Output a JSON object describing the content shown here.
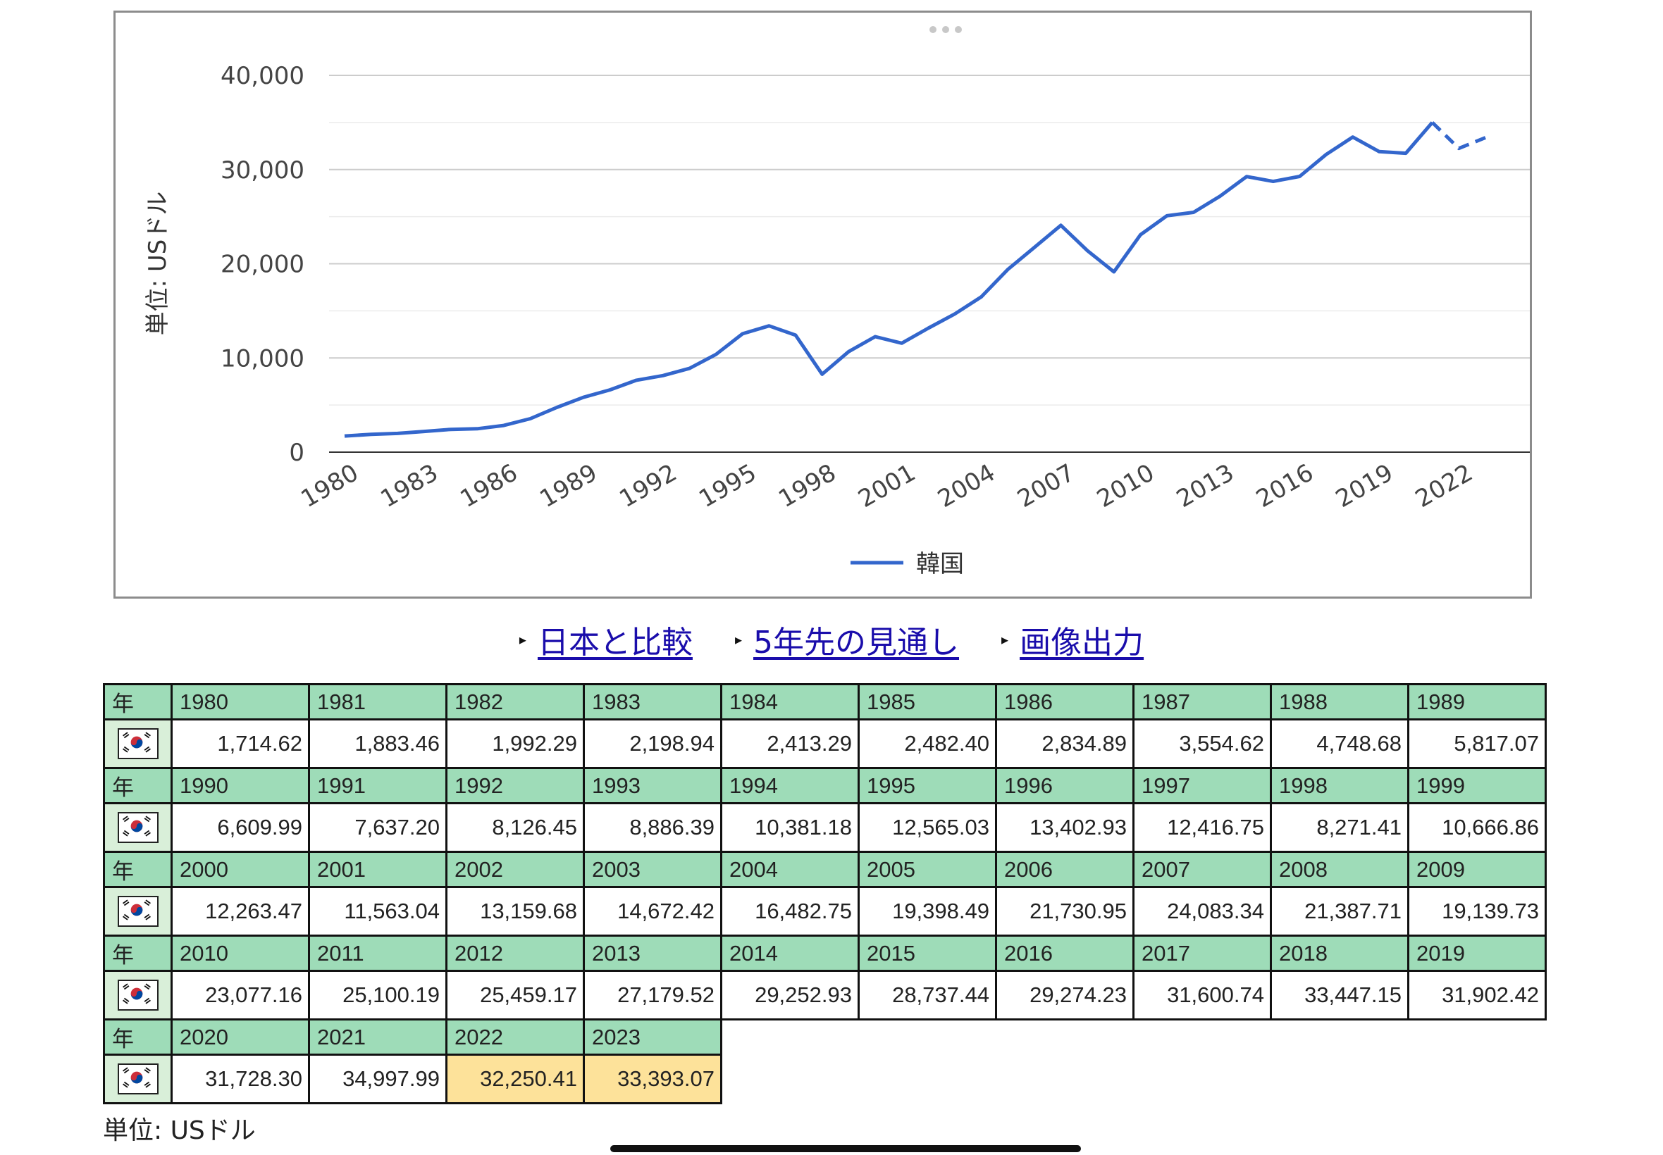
{
  "chart_data": {
    "type": "line",
    "ylabel": "単位: USドル",
    "xlabel": "",
    "ylim": [
      0,
      40000
    ],
    "y_ticks": [
      0,
      10000,
      20000,
      30000,
      40000
    ],
    "y_tick_labels": [
      "0",
      "10,000",
      "20,000",
      "30,000",
      "40,000"
    ],
    "x_tick_labels": [
      "1980",
      "1983",
      "1986",
      "1989",
      "1992",
      "1995",
      "1998",
      "2001",
      "2004",
      "2007",
      "2010",
      "2013",
      "2016",
      "2019",
      "2022"
    ],
    "grid": true,
    "legend": "bottom",
    "x": [
      1980,
      1981,
      1982,
      1983,
      1984,
      1985,
      1986,
      1987,
      1988,
      1989,
      1990,
      1991,
      1992,
      1993,
      1994,
      1995,
      1996,
      1997,
      1998,
      1999,
      2000,
      2001,
      2002,
      2003,
      2004,
      2005,
      2006,
      2007,
      2008,
      2009,
      2010,
      2011,
      2012,
      2013,
      2014,
      2015,
      2016,
      2017,
      2018,
      2019,
      2020,
      2021,
      2022,
      2023
    ],
    "series": [
      {
        "name": "韓国",
        "color": "#3366cc",
        "values": [
          1714.62,
          1883.46,
          1992.29,
          2198.94,
          2413.29,
          2482.4,
          2834.89,
          3554.62,
          4748.68,
          5817.07,
          6609.99,
          7637.2,
          8126.45,
          8886.39,
          10381.18,
          12565.03,
          13402.93,
          12416.75,
          8271.41,
          10666.86,
          12263.47,
          11563.04,
          13159.68,
          14672.42,
          16482.75,
          19398.49,
          21730.95,
          24083.34,
          21387.71,
          19139.73,
          23077.16,
          25100.19,
          25459.17,
          27179.52,
          29252.93,
          28737.44,
          29274.23,
          31600.74,
          33447.15,
          31902.42,
          31728.3,
          34997.99,
          32250.41,
          33393.07
        ],
        "forecast_from": 2022
      }
    ]
  },
  "links": [
    {
      "label": "日本と比較"
    },
    {
      "label": "5年先の見通し"
    },
    {
      "label": "画像出力"
    }
  ],
  "table": {
    "year_header": "年",
    "flag_icon": "south-korea-flag-icon",
    "rows": [
      {
        "years": [
          "1980",
          "1981",
          "1982",
          "1983",
          "1984",
          "1985",
          "1986",
          "1987",
          "1988",
          "1989"
        ],
        "values": [
          "1,714.62",
          "1,883.46",
          "1,992.29",
          "2,198.94",
          "2,413.29",
          "2,482.40",
          "2,834.89",
          "3,554.62",
          "4,748.68",
          "5,817.07"
        ]
      },
      {
        "years": [
          "1990",
          "1991",
          "1992",
          "1993",
          "1994",
          "1995",
          "1996",
          "1997",
          "1998",
          "1999"
        ],
        "values": [
          "6,609.99",
          "7,637.20",
          "8,126.45",
          "8,886.39",
          "10,381.18",
          "12,565.03",
          "13,402.93",
          "12,416.75",
          "8,271.41",
          "10,666.86"
        ]
      },
      {
        "years": [
          "2000",
          "2001",
          "2002",
          "2003",
          "2004",
          "2005",
          "2006",
          "2007",
          "2008",
          "2009"
        ],
        "values": [
          "12,263.47",
          "11,563.04",
          "13,159.68",
          "14,672.42",
          "16,482.75",
          "19,398.49",
          "21,730.95",
          "24,083.34",
          "21,387.71",
          "19,139.73"
        ]
      },
      {
        "years": [
          "2010",
          "2011",
          "2012",
          "2013",
          "2014",
          "2015",
          "2016",
          "2017",
          "2018",
          "2019"
        ],
        "values": [
          "23,077.16",
          "25,100.19",
          "25,459.17",
          "27,179.52",
          "29,252.93",
          "28,737.44",
          "29,274.23",
          "31,600.74",
          "33,447.15",
          "31,902.42"
        ]
      },
      {
        "years": [
          "2020",
          "2021",
          "2022",
          "2023"
        ],
        "values": [
          "31,728.30",
          "34,997.99",
          "32,250.41",
          "33,393.07"
        ],
        "forecast_years": [
          "2022",
          "2023"
        ]
      }
    ],
    "colors": {
      "header_bg": "#9edcb8",
      "forecast_bg": "#fde29a",
      "flag_cell_bg": "#d9efd9"
    }
  },
  "unit_note": "単位: USドル"
}
